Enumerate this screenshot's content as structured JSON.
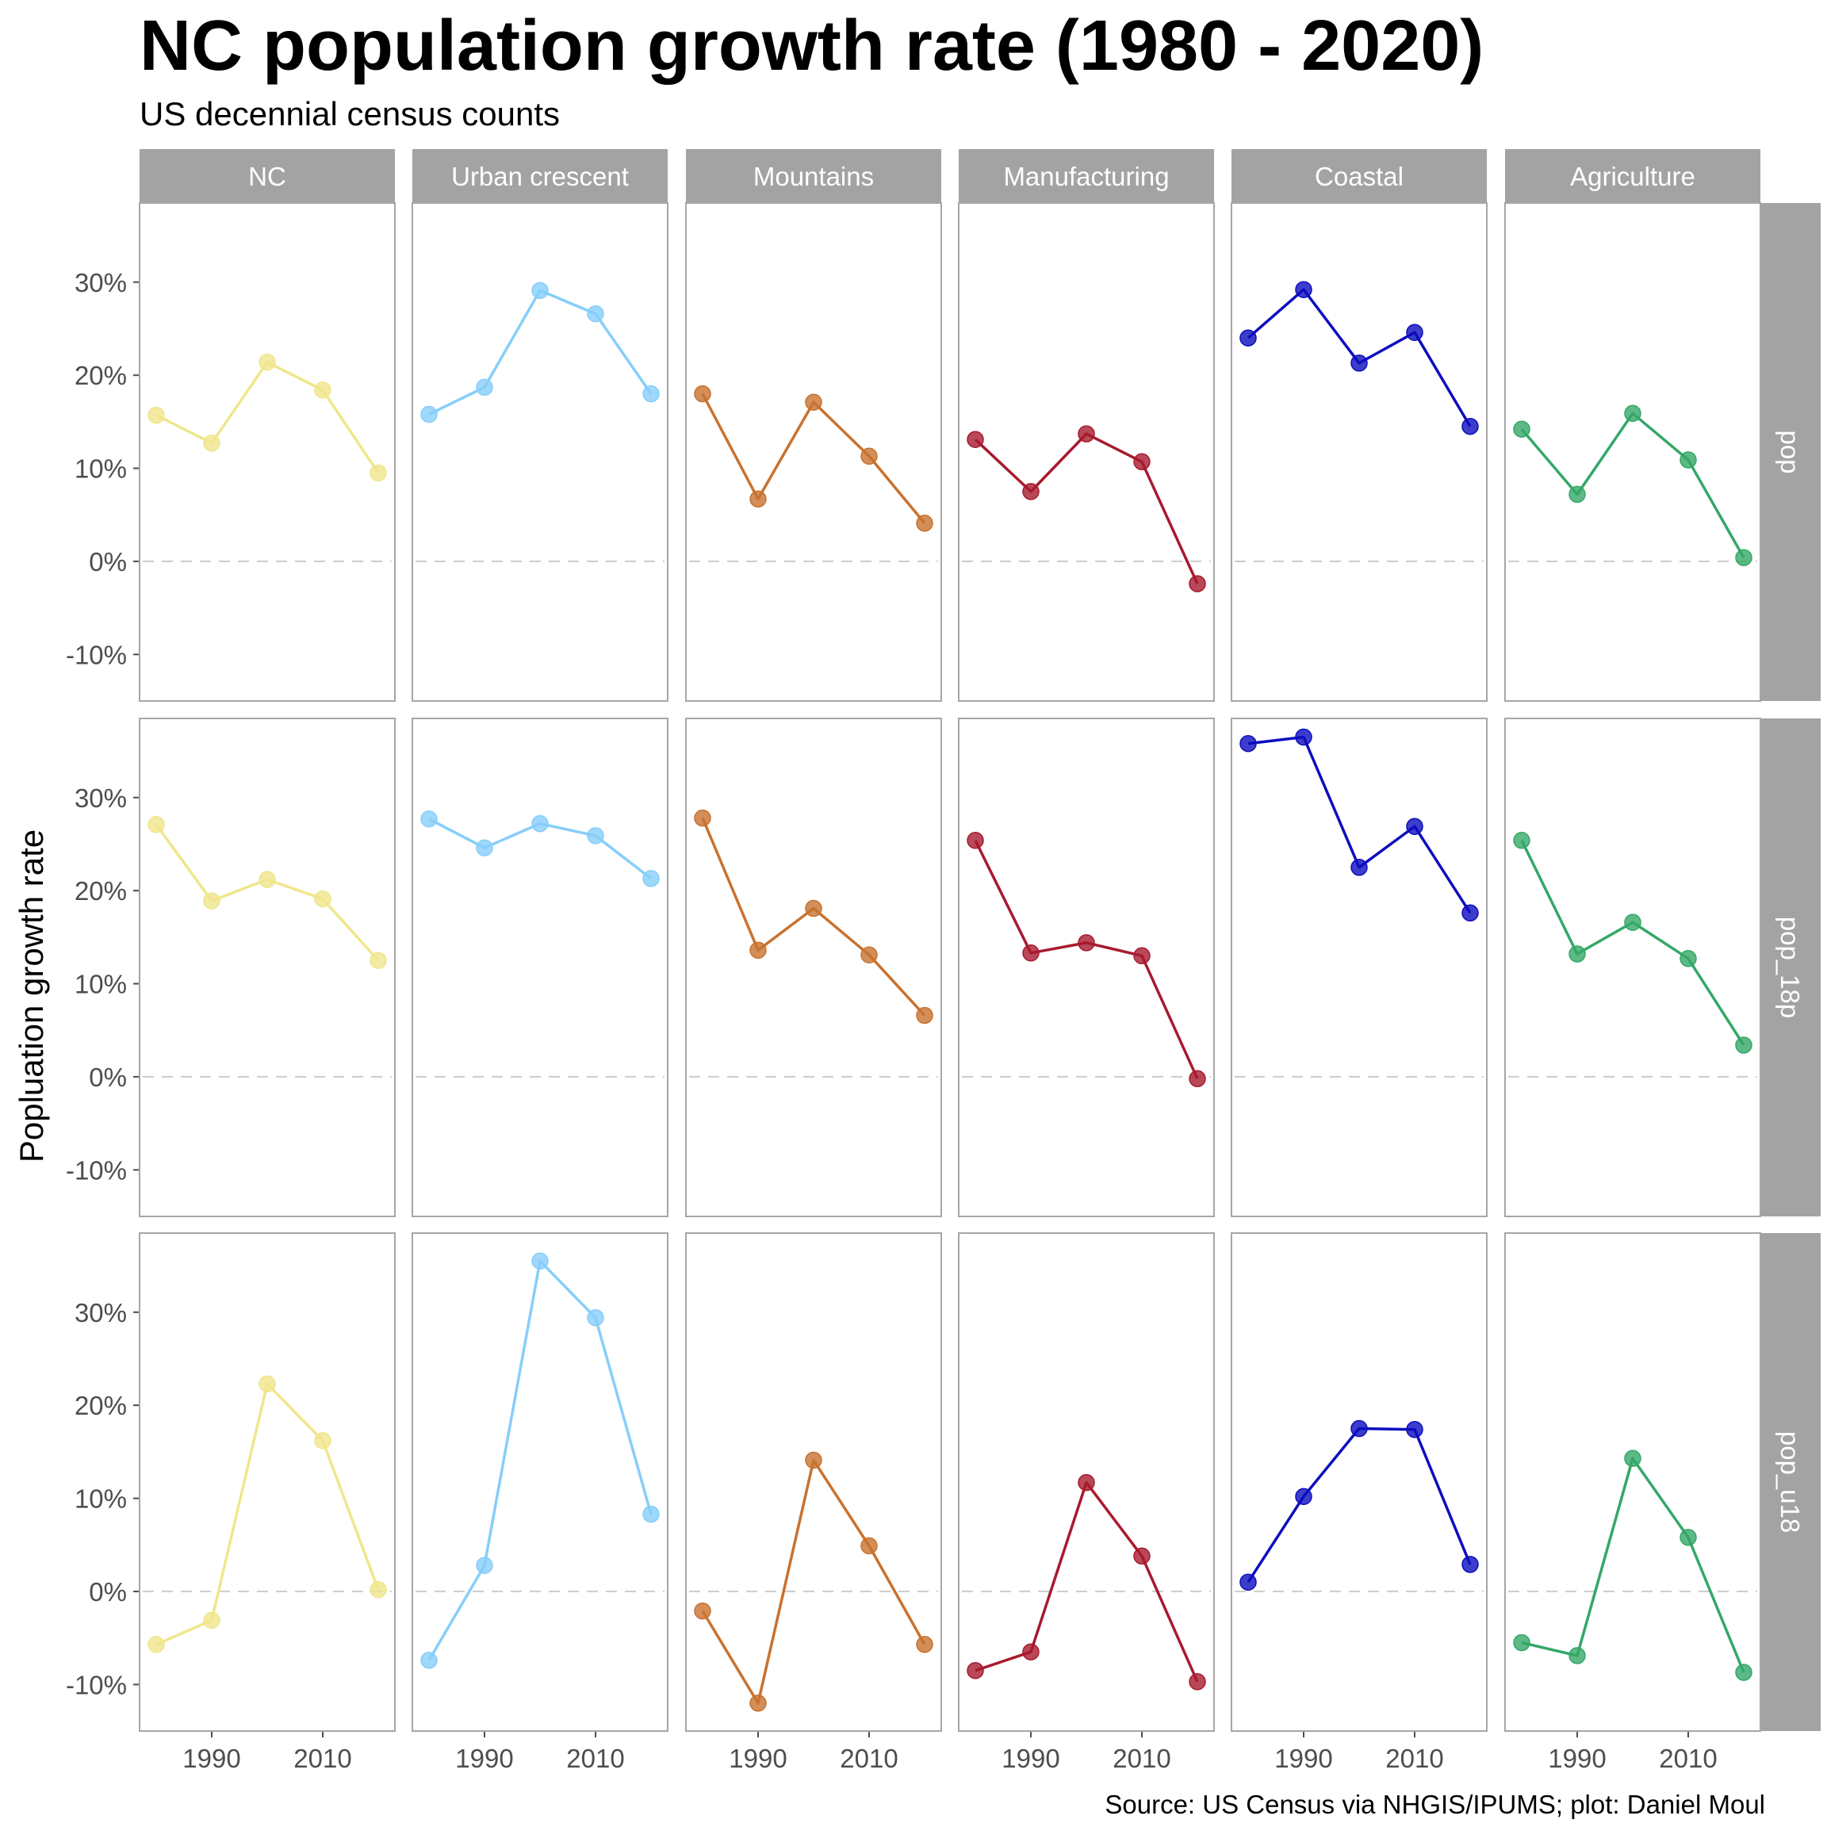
{
  "chart_data": {
    "type": "line",
    "title": "NC population growth rate (1980 - 2020)",
    "subtitle": "US decennial census counts",
    "ylabel": "Popluation growth rate",
    "xlabel": "",
    "caption": "Source: US Census via NHGIS/IPUMS; plot: Daniel Moul",
    "x": [
      1980,
      1990,
      2000,
      2010,
      2020
    ],
    "xlim": [
      1977,
      2023
    ],
    "ylim": [
      -0.15,
      0.385
    ],
    "x_ticks": [
      1990,
      2010
    ],
    "x_tick_labels": [
      "1990",
      "2010"
    ],
    "y_ticks": [
      -0.1,
      0,
      0.1,
      0.2,
      0.3
    ],
    "y_tick_labels": [
      "-10%",
      "0%",
      "10%",
      "20%",
      "30%"
    ],
    "grid": false,
    "zero_line": "dashed",
    "columns": [
      "NC",
      "Urban crescent",
      "Mountains",
      "Manufacturing",
      "Coastal",
      "Agriculture"
    ],
    "rows": [
      "pop",
      "pop_18p",
      "pop_u18"
    ],
    "colors": {
      "NC": "#f0e68c",
      "Urban crescent": "#87cefa",
      "Mountains": "#c8722f",
      "Manufacturing": "#a81a2e",
      "Coastal": "#0d0dbf",
      "Agriculture": "#34a867"
    },
    "series": {
      "pop": {
        "NC": [
          0.157,
          0.127,
          0.214,
          0.184,
          0.095
        ],
        "Urban crescent": [
          0.158,
          0.187,
          0.291,
          0.266,
          0.18
        ],
        "Mountains": [
          0.18,
          0.067,
          0.171,
          0.113,
          0.041
        ],
        "Manufacturing": [
          0.131,
          0.075,
          0.137,
          0.107,
          -0.024
        ],
        "Coastal": [
          0.24,
          0.292,
          0.213,
          0.246,
          0.145
        ],
        "Agriculture": [
          0.142,
          0.072,
          0.159,
          0.109,
          0.004
        ]
      },
      "pop_18p": {
        "NC": [
          0.271,
          0.189,
          0.212,
          0.191,
          0.125
        ],
        "Urban crescent": [
          0.277,
          0.246,
          0.272,
          0.259,
          0.213
        ],
        "Mountains": [
          0.278,
          0.136,
          0.181,
          0.131,
          0.066
        ],
        "Manufacturing": [
          0.254,
          0.133,
          0.144,
          0.13,
          -0.002
        ],
        "Coastal": [
          0.358,
          0.365,
          0.225,
          0.269,
          0.176
        ],
        "Agriculture": [
          0.254,
          0.132,
          0.166,
          0.127,
          0.034
        ]
      },
      "pop_u18": {
        "NC": [
          -0.057,
          -0.031,
          0.223,
          0.162,
          0.002
        ],
        "Urban crescent": [
          -0.074,
          0.028,
          0.355,
          0.294,
          0.083
        ],
        "Mountains": [
          -0.021,
          -0.12,
          0.141,
          0.049,
          -0.057
        ],
        "Manufacturing": [
          -0.085,
          -0.065,
          0.117,
          0.038,
          -0.097
        ],
        "Coastal": [
          0.01,
          0.102,
          0.175,
          0.174,
          0.029
        ],
        "Agriculture": [
          -0.055,
          -0.069,
          0.143,
          0.058,
          -0.087
        ]
      }
    }
  }
}
